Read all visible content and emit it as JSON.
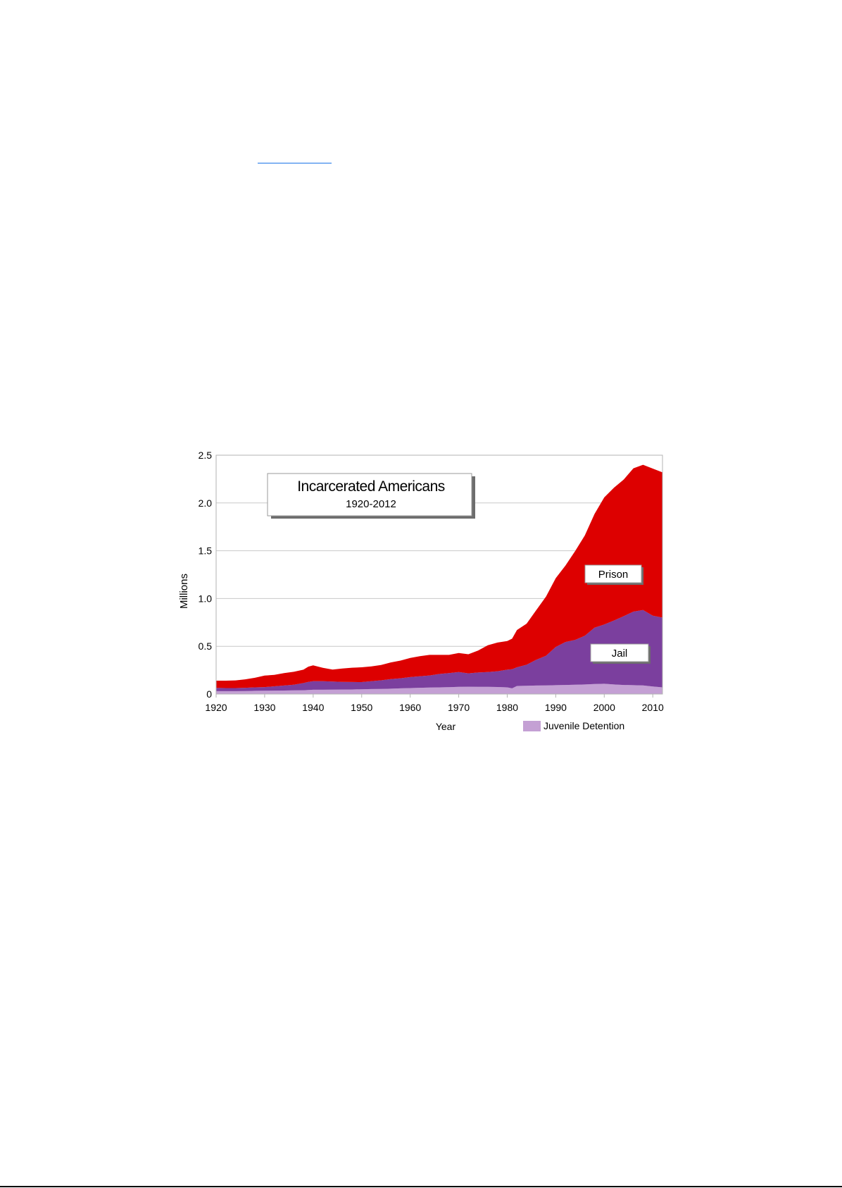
{
  "chart_data": {
    "type": "area",
    "stacked": true,
    "title": "Incarcerated Americans",
    "subtitle": "1920-2012",
    "xlabel": "Year",
    "ylabel": "Millions",
    "xlim": [
      1920,
      2012
    ],
    "ylim": [
      0,
      2.5
    ],
    "grid": true,
    "x_ticks": [
      1920,
      1930,
      1940,
      1950,
      1960,
      1970,
      1980,
      1990,
      2000,
      2010
    ],
    "y_ticks": [
      {
        "value": 0,
        "label": "0"
      },
      {
        "value": 0.5,
        "label": "0.5"
      },
      {
        "value": 1.0,
        "label": "1.0"
      },
      {
        "value": 1.5,
        "label": "1.5"
      },
      {
        "value": 2.0,
        "label": "2.0"
      },
      {
        "value": 2.5,
        "label": "2.5"
      }
    ],
    "x": [
      1920,
      1922,
      1924,
      1926,
      1928,
      1930,
      1932,
      1934,
      1936,
      1938,
      1939,
      1940,
      1942,
      1944,
      1946,
      1948,
      1950,
      1952,
      1954,
      1956,
      1958,
      1960,
      1962,
      1964,
      1966,
      1968,
      1970,
      1972,
      1974,
      1976,
      1978,
      1980,
      1981,
      1982,
      1984,
      1986,
      1988,
      1990,
      1992,
      1994,
      1996,
      1998,
      2000,
      2002,
      2004,
      2006,
      2008,
      2010,
      2012
    ],
    "series": [
      {
        "name": "Juvenile Detention",
        "color": "#c4a0d4",
        "values": [
          0.03,
          0.03,
          0.03,
          0.032,
          0.034,
          0.035,
          0.036,
          0.037,
          0.038,
          0.04,
          0.042,
          0.045,
          0.045,
          0.046,
          0.047,
          0.048,
          0.05,
          0.052,
          0.054,
          0.056,
          0.06,
          0.063,
          0.066,
          0.068,
          0.07,
          0.072,
          0.075,
          0.077,
          0.076,
          0.075,
          0.074,
          0.07,
          0.06,
          0.085,
          0.087,
          0.089,
          0.091,
          0.093,
          0.095,
          0.097,
          0.1,
          0.105,
          0.108,
          0.1,
          0.095,
          0.093,
          0.09,
          0.08,
          0.07
        ]
      },
      {
        "name": "Jail",
        "color": "#7b3f9e",
        "values": [
          0.035,
          0.033,
          0.033,
          0.034,
          0.036,
          0.038,
          0.045,
          0.052,
          0.06,
          0.075,
          0.085,
          0.09,
          0.09,
          0.085,
          0.08,
          0.078,
          0.075,
          0.083,
          0.09,
          0.1,
          0.105,
          0.115,
          0.12,
          0.127,
          0.14,
          0.148,
          0.155,
          0.14,
          0.15,
          0.155,
          0.165,
          0.185,
          0.2,
          0.195,
          0.22,
          0.27,
          0.31,
          0.4,
          0.45,
          0.47,
          0.51,
          0.59,
          0.62,
          0.67,
          0.72,
          0.77,
          0.79,
          0.74,
          0.73
        ]
      },
      {
        "name": "Prison",
        "color": "#dd0000",
        "values": [
          0.075,
          0.077,
          0.08,
          0.088,
          0.1,
          0.12,
          0.12,
          0.13,
          0.135,
          0.14,
          0.16,
          0.165,
          0.14,
          0.125,
          0.14,
          0.15,
          0.155,
          0.155,
          0.16,
          0.175,
          0.185,
          0.2,
          0.21,
          0.215,
          0.2,
          0.19,
          0.2,
          0.2,
          0.23,
          0.28,
          0.3,
          0.3,
          0.32,
          0.39,
          0.43,
          0.52,
          0.62,
          0.72,
          0.8,
          0.93,
          1.05,
          1.19,
          1.33,
          1.39,
          1.43,
          1.5,
          1.52,
          1.54,
          1.52
        ]
      }
    ],
    "labels": {
      "prison": "Prison",
      "jail": "Jail",
      "legend_juvenile": "Juvenile Detention"
    }
  }
}
